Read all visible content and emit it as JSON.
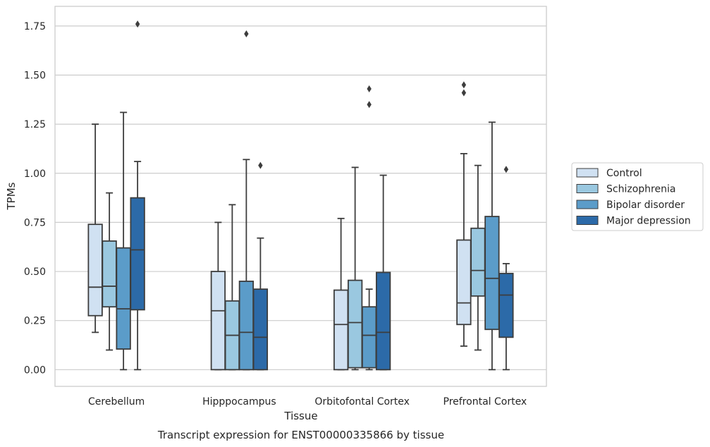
{
  "chart_data": {
    "type": "box",
    "caption": "Transcript expression for ENST00000335866 by tissue",
    "xlabel": "Tissue",
    "ylabel": "TPMs",
    "ylim": [
      -0.085,
      1.85
    ],
    "yticks": [
      0.0,
      0.25,
      0.5,
      0.75,
      1.0,
      1.25,
      1.5,
      1.75
    ],
    "ytick_labels": [
      "0.00",
      "0.25",
      "0.50",
      "0.75",
      "1.00",
      "1.25",
      "1.50",
      "1.75"
    ],
    "grid": "horizontal",
    "legend_position": "right",
    "categories": [
      "Cerebellum",
      "Hipppocampus",
      "Orbitofontal Cortex",
      "Prefrontal Cortex"
    ],
    "series": [
      {
        "name": "Control",
        "color": "#d0e1f2",
        "boxes": [
          {
            "whislo": 0.19,
            "q1": 0.275,
            "med": 0.42,
            "q3": 0.74,
            "whishi": 1.25,
            "fliers": []
          },
          {
            "whislo": 0.0,
            "q1": 0.0,
            "med": 0.3,
            "q3": 0.5,
            "whishi": 0.75,
            "fliers": []
          },
          {
            "whislo": 0.0,
            "q1": 0.0,
            "med": 0.23,
            "q3": 0.405,
            "whishi": 0.77,
            "fliers": []
          },
          {
            "whislo": 0.12,
            "q1": 0.23,
            "med": 0.34,
            "q3": 0.66,
            "whishi": 1.1,
            "fliers": [
              1.41,
              1.45
            ]
          }
        ]
      },
      {
        "name": "Schizophrenia",
        "color": "#9ac8e0",
        "boxes": [
          {
            "whislo": 0.1,
            "q1": 0.32,
            "med": 0.425,
            "q3": 0.655,
            "whishi": 0.9,
            "fliers": []
          },
          {
            "whislo": 0.0,
            "q1": 0.0,
            "med": 0.175,
            "q3": 0.35,
            "whishi": 0.84,
            "fliers": []
          },
          {
            "whislo": 0.0,
            "q1": 0.01,
            "med": 0.24,
            "q3": 0.455,
            "whishi": 1.03,
            "fliers": []
          },
          {
            "whislo": 0.1,
            "q1": 0.375,
            "med": 0.505,
            "q3": 0.72,
            "whishi": 1.04,
            "fliers": []
          }
        ]
      },
      {
        "name": "Bipolar disorder",
        "color": "#5b9cc9",
        "boxes": [
          {
            "whislo": 0.0,
            "q1": 0.105,
            "med": 0.31,
            "q3": 0.62,
            "whishi": 1.31,
            "fliers": []
          },
          {
            "whislo": 0.0,
            "q1": 0.0,
            "med": 0.19,
            "q3": 0.45,
            "whishi": 1.07,
            "fliers": [
              1.71
            ]
          },
          {
            "whislo": 0.0,
            "q1": 0.01,
            "med": 0.175,
            "q3": 0.32,
            "whishi": 0.41,
            "fliers": [
              1.35,
              1.43
            ]
          },
          {
            "whislo": 0.0,
            "q1": 0.205,
            "med": 0.465,
            "q3": 0.78,
            "whishi": 1.26,
            "fliers": []
          }
        ]
      },
      {
        "name": "Major depression",
        "color": "#2c6aa8",
        "boxes": [
          {
            "whislo": 0.0,
            "q1": 0.305,
            "med": 0.61,
            "q3": 0.875,
            "whishi": 1.06,
            "fliers": [
              1.76
            ]
          },
          {
            "whislo": 0.0,
            "q1": 0.0,
            "med": 0.165,
            "q3": 0.41,
            "whishi": 0.67,
            "fliers": [
              1.04
            ]
          },
          {
            "whislo": 0.0,
            "q1": 0.0,
            "med": 0.19,
            "q3": 0.495,
            "whishi": 0.99,
            "fliers": []
          },
          {
            "whislo": 0.0,
            "q1": 0.165,
            "med": 0.38,
            "q3": 0.49,
            "whishi": 0.54,
            "fliers": [
              1.02
            ]
          }
        ]
      }
    ]
  }
}
